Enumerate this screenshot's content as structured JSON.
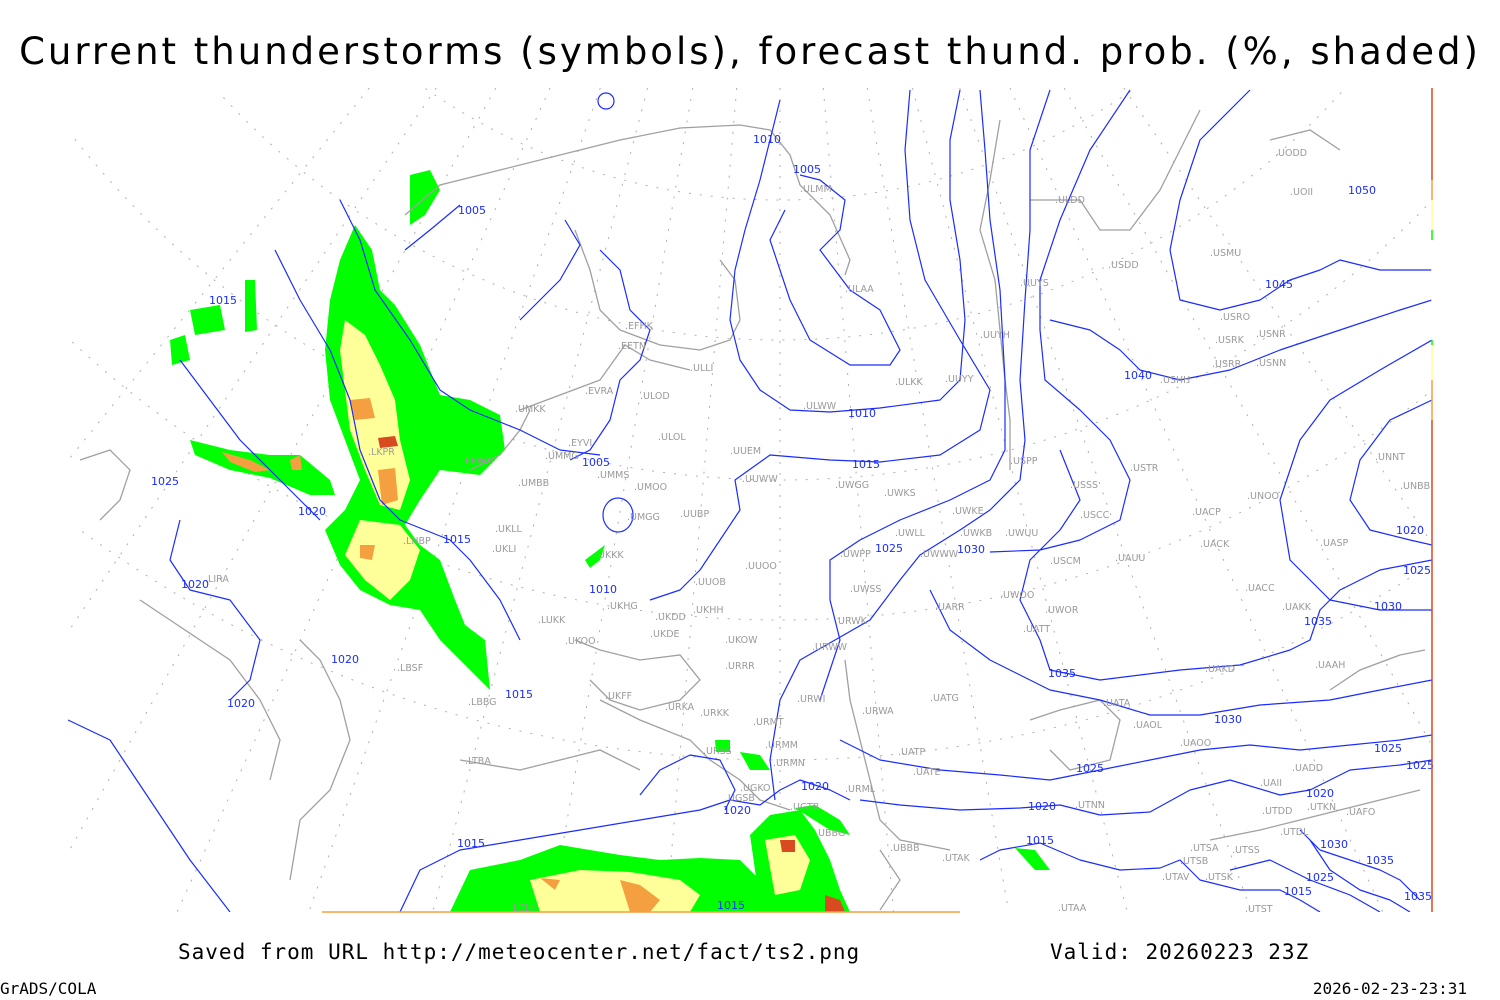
{
  "title": "Current thunderstorms (symbols), forecast thund. prob. (%, shaded)",
  "footer": {
    "saved": "Saved from URL http://meteocenter.net/fact/ts2.png",
    "valid": "Valid: 20260223 23Z",
    "software": "GrADS/COLA",
    "timestamp": "2026-02-23-23:31"
  },
  "colors": {
    "isobar": "#1a2cff",
    "coastline": "#a0a0a0",
    "grid": "#b0b0b0",
    "prob_low": "#00ff00",
    "prob_mid": "#ffff99",
    "prob_high": "#f5a040",
    "prob_max": "#d84a20"
  },
  "stations": [
    "EFHK",
    "EETN",
    "EVRA",
    "EYVI",
    "UMKK",
    "UMMG",
    "UMMS",
    "UMOO",
    "UMBB",
    "ULLI",
    "ULOD",
    "ULOL",
    "ULMM",
    "ULAA",
    "ULKK",
    "UUYY",
    "ULWW",
    "UUEM",
    "UUWW",
    "UWGG",
    "UWKS",
    "UWKE",
    "UWKB",
    "UWUU",
    "UWPP",
    "UWWW",
    "UWSS",
    "UWLL",
    "UARR",
    "URWK",
    "URWW",
    "UKOW",
    "URRR",
    "UUOO",
    "UUOB",
    "UMGG",
    "UUBP",
    "UKKK",
    "UKLL",
    "UKLI",
    "LUKK",
    "UKOO",
    "UKHG",
    "UKDD",
    "UKHH",
    "UKDE",
    "UKFF",
    "URKA",
    "URKK",
    "URWI",
    "URMT",
    "URMM",
    "URMN",
    "URSS",
    "URML",
    "UGKO",
    "UGSB",
    "UGTB",
    "UBBG",
    "UBBB",
    "UTAK",
    "UATG",
    "URWA",
    "UATP",
    "UATE",
    "ULDD",
    "UUYS",
    "UUYH",
    "USDD",
    "USMU",
    "UODD",
    "UOII",
    "USRO",
    "USRK",
    "USNR",
    "USRR",
    "USNN",
    "USHH",
    "USPP",
    "USTR",
    "USSS",
    "USCC",
    "UACP",
    "UACK",
    "UAUU",
    "USCM",
    "UASP",
    "UACC",
    "UAKK",
    "UWOO",
    "UWOR",
    "UATT",
    "UAKD",
    "UAAH",
    "UATA",
    "UAOL",
    "UAOO",
    "UADD",
    "UAII",
    "UTNN",
    "UTDD",
    "UTKN",
    "UAFO",
    "UTDL",
    "UTSA",
    "UTSS",
    "UTSB",
    "UTAV",
    "UTSK",
    "UTAA",
    "UTST",
    "UNOO",
    "UNNT",
    "UNBB",
    "LBSF",
    "LBBG",
    "LTBA",
    "LIRA",
    "LCLK",
    "LKPR",
    "LHBP",
    "EPWA"
  ],
  "isobar_labels": [
    "1005",
    "1015",
    "1025",
    "1020",
    "1020",
    "1015",
    "1005",
    "1010",
    "1005",
    "1010",
    "1015",
    "1010",
    "1015",
    "1020",
    "1020",
    "1025",
    "1030",
    "1020",
    "1020",
    "1015",
    "1015",
    "1015",
    "1020",
    "1025",
    "1030",
    "1035",
    "1035",
    "1030",
    "1025",
    "1020",
    "1040",
    "1045",
    "1050",
    "1025",
    "1025",
    "1020",
    "1030",
    "1035",
    "1025",
    "1015",
    "1035"
  ]
}
